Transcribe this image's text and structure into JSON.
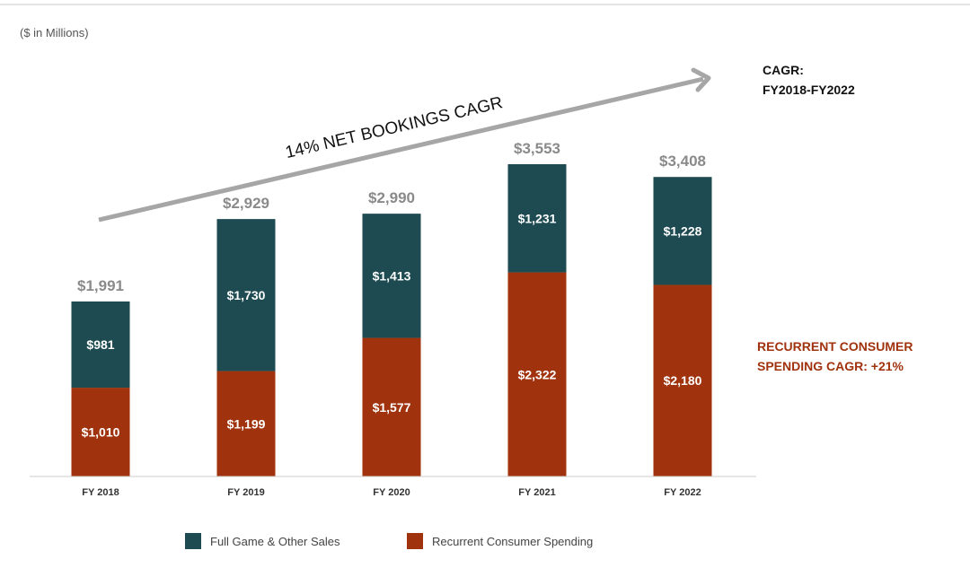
{
  "unit_note": "($ in Millions)",
  "chart_data": {
    "type": "bar",
    "stacked": true,
    "categories": [
      "FY 2018",
      "FY 2019",
      "FY 2020",
      "FY 2021",
      "FY 2022"
    ],
    "series": [
      {
        "name": "Recurrent Consumer Spending",
        "values": [
          1010,
          1199,
          1577,
          2322,
          2180
        ],
        "labels": [
          "$1,010",
          "$1,199",
          "$1,577",
          "$2,322",
          "$2,180"
        ],
        "color": "#a0330d"
      },
      {
        "name": "Full Game & Other Sales",
        "values": [
          981,
          1730,
          1413,
          1231,
          1228
        ],
        "labels": [
          "$981",
          "$1,730",
          "$1,413",
          "$1,231",
          "$1,228"
        ],
        "color": "#1e4b52"
      }
    ],
    "totals": [
      1991,
      2929,
      2990,
      3553,
      3408
    ],
    "total_labels": [
      "$1,991",
      "$2,929",
      "$2,990",
      "$3,553",
      "$3,408"
    ],
    "ylim": [
      0,
      3553
    ],
    "grid": false,
    "legend_position": "bottom"
  },
  "arrow_annotation": "14% NET BOOKINGS CAGR",
  "cagr_note": {
    "line1": "CAGR:",
    "line2": "FY2018-FY2022"
  },
  "rcs_note": {
    "line1": "RECURRENT CONSUMER",
    "line2": "SPENDING CAGR: +21%",
    "color": "#a0330d"
  },
  "legend": [
    {
      "label": "Full Game & Other Sales",
      "color": "#1e4b52"
    },
    {
      "label": "Recurrent Consumer Spending",
      "color": "#a0330d"
    }
  ],
  "colors": {
    "arrow": "#a6a6a6",
    "axis": "#cccccc",
    "total_text": "#8a8a8a"
  }
}
